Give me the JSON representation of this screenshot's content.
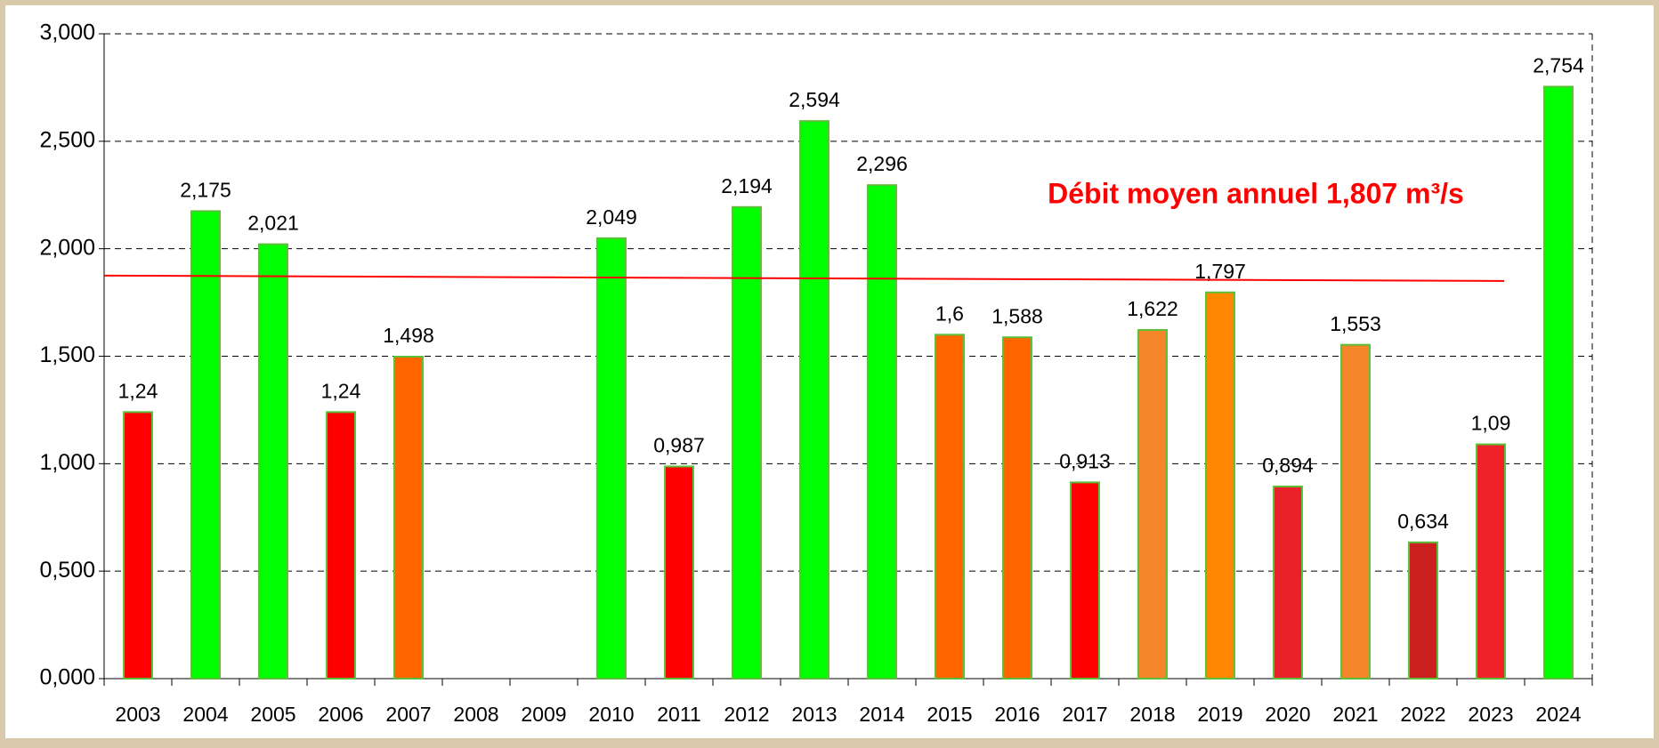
{
  "chart_data": {
    "type": "bar",
    "categories": [
      "2003",
      "2004",
      "2005",
      "2006",
      "2007",
      "2008",
      "2009",
      "2010",
      "2011",
      "2012",
      "2013",
      "2014",
      "2015",
      "2016",
      "2017",
      "2018",
      "2019",
      "2020",
      "2021",
      "2022",
      "2023",
      "2024"
    ],
    "values": [
      1.24,
      2.175,
      2.021,
      1.24,
      1.498,
      null,
      null,
      2.049,
      0.987,
      2.194,
      2.594,
      2.296,
      1.6,
      1.588,
      0.913,
      1.622,
      1.797,
      0.894,
      1.553,
      0.634,
      1.09,
      2.754
    ],
    "value_labels": [
      "1,24",
      "2,175",
      "2,021",
      "1,24",
      "1,498",
      null,
      null,
      "2,049",
      "0,987",
      "2,194",
      "2,594",
      "2,296",
      "1,6",
      "1,588",
      "0,913",
      "1,622",
      "1,797",
      "0,894",
      "1,553",
      "0,634",
      "1,09",
      "2,754"
    ],
    "colors": [
      "#ff0000",
      "#00ff00",
      "#00ff00",
      "#ff0000",
      "#ff6600",
      null,
      null,
      "#00ff00",
      "#ff0000",
      "#00ff00",
      "#00ff00",
      "#00ff00",
      "#ff6600",
      "#ff6600",
      "#ff0000",
      "#f5862a",
      "#ff8800",
      "#e8212a",
      "#f5862a",
      "#cc1f20",
      "#ee2228",
      "#00ff00"
    ],
    "ylim": [
      0,
      3
    ],
    "yticks": [
      {
        "value": 0,
        "label": "0,000"
      },
      {
        "value": 0.5,
        "label": "0,500"
      },
      {
        "value": 1,
        "label": "1,000"
      },
      {
        "value": 1.5,
        "label": "1,500"
      },
      {
        "value": 2,
        "label": "2,000"
      },
      {
        "value": 2.5,
        "label": "2,500"
      },
      {
        "value": 3,
        "label": "3,000"
      }
    ],
    "grid": true,
    "mean_line": {
      "start": 1.875,
      "end": 1.85,
      "color": "#ff0000"
    },
    "annotation": "Débit moyen annuel 1,807 m³/s"
  }
}
